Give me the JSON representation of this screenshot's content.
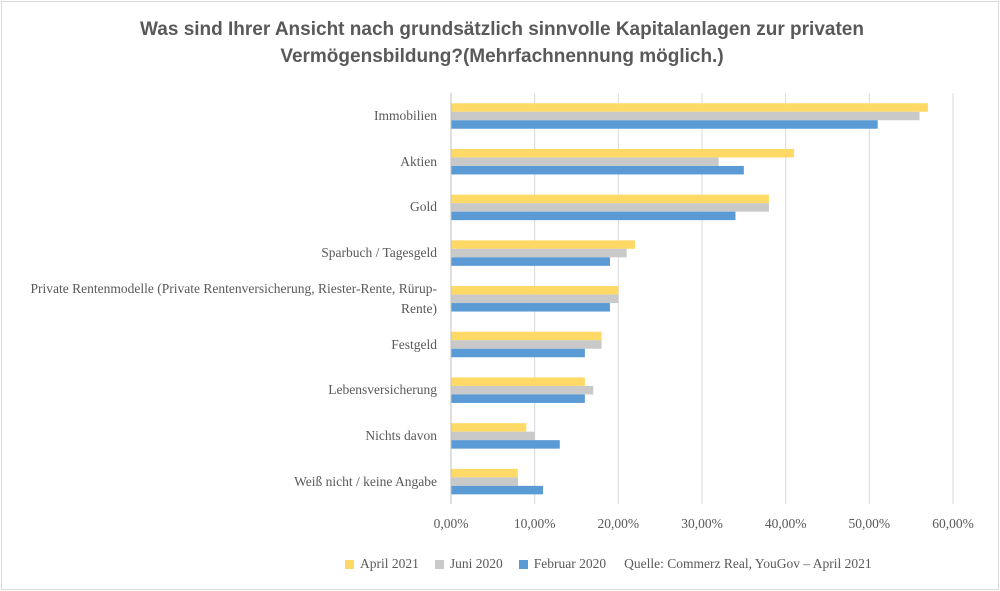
{
  "chart_data": {
    "type": "bar",
    "orientation": "horizontal",
    "title_lines": [
      "Was sind Ihrer Ansicht nach grundsätzlich sinnvolle Kapitalanlagen zur privaten",
      "Vermögensbildung?(Mehrfachnennung möglich.)"
    ],
    "categories": [
      "Immobilien",
      "Aktien",
      "Gold",
      "Sparbuch / Tagesgeld",
      "Private Rentenmodelle (Private Rentenversicherung, Riester-Rente, Rürup-Rente)",
      "Festgeld",
      "Lebensversicherung",
      "Nichts davon",
      "Weiß nicht / keine Angabe"
    ],
    "series": [
      {
        "name": "April 2021",
        "color": "#ffd966",
        "values": [
          57,
          41,
          38,
          22,
          20,
          18,
          16,
          9,
          8
        ]
      },
      {
        "name": "Juni 2020",
        "color": "#c9c9c9",
        "values": [
          56,
          32,
          38,
          21,
          20,
          18,
          17,
          10,
          8
        ]
      },
      {
        "name": "Februar 2020",
        "color": "#5b9bd5",
        "values": [
          51,
          35,
          34,
          19,
          19,
          16,
          16,
          13,
          11
        ]
      }
    ],
    "xlim": [
      0,
      60
    ],
    "x_ticks": [
      "0,00%",
      "10,00%",
      "20,00%",
      "30,00%",
      "40,00%",
      "50,00%",
      "60,00%"
    ],
    "grid": true,
    "legend_position": "bottom",
    "source_note": "Quelle: Commerz Real, YouGov – April 2021"
  }
}
